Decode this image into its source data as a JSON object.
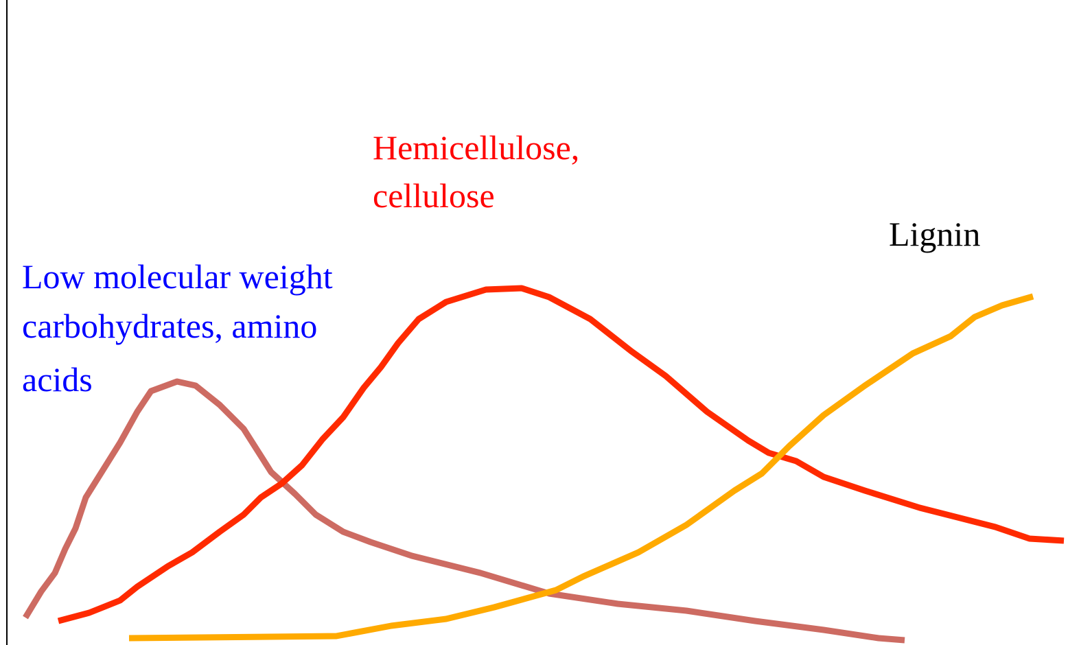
{
  "labels": [
    {
      "lines": [
        "Hemicellulose,",
        "cellulose"
      ]
    },
    {
      "lines": [
        "Lignin"
      ]
    },
    {
      "lines": [
        "Low molecular weight",
        "carbohydrates, amino",
        "acids"
      ]
    }
  ]
}
